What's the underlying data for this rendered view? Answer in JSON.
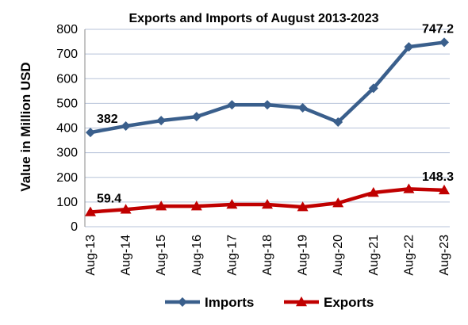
{
  "chart_data": {
    "type": "line",
    "title": "Exports and Imports of August 2013-2023",
    "ylabel": "Value in  Million  USD",
    "xlabel": "",
    "ylim": [
      0,
      800
    ],
    "yticks": [
      0,
      100,
      200,
      300,
      400,
      500,
      600,
      700,
      800
    ],
    "grid": true,
    "legend": "bottom",
    "categories": [
      "Aug-13",
      "Aug-14",
      "Aug-15",
      "Aug-16",
      "Aug-17",
      "Aug-18",
      "Aug-19",
      "Aug-20",
      "Aug-21",
      "Aug-22",
      "Aug-23"
    ],
    "series": [
      {
        "name": "Imports",
        "color": "#3a5f8c",
        "marker": "diamond",
        "values": [
          382,
          408,
          430,
          446,
          494,
          494,
          482,
          424,
          561,
          729,
          747.2
        ],
        "labels": [
          {
            "index": 0,
            "text": "382"
          },
          {
            "index": 10,
            "text": "747.2"
          }
        ]
      },
      {
        "name": "Exports",
        "color": "#c00000",
        "marker": "triangle",
        "values": [
          59.4,
          70,
          83,
          83,
          90,
          90,
          80,
          96,
          138,
          153,
          148.3
        ],
        "labels": [
          {
            "index": 0,
            "text": "59.4"
          },
          {
            "index": 10,
            "text": "148.3"
          }
        ]
      }
    ]
  }
}
